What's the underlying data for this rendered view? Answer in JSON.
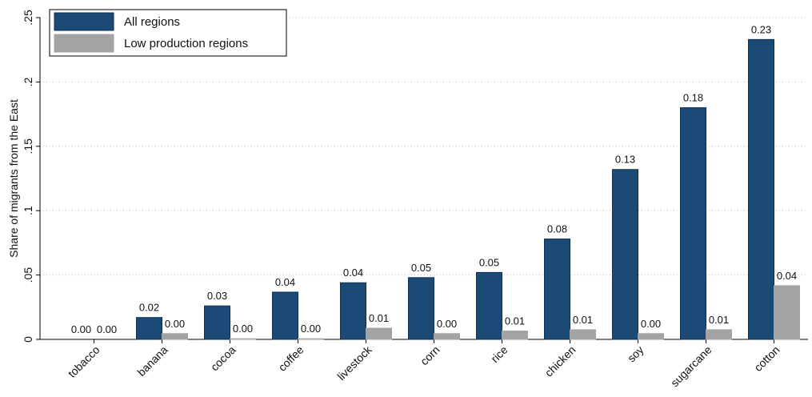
{
  "chart_data": {
    "type": "bar",
    "y_label": "Share of migrants from the East",
    "categories": [
      "tobacco",
      "banana",
      "cocoa",
      "coffee",
      "livestock",
      "corn",
      "rice",
      "chicken",
      "soy",
      "sugarcane",
      "cotton"
    ],
    "series": [
      {
        "name": "All regions",
        "color": "#1b4a76",
        "values": [
          0,
          0.017,
          0.026,
          0.0367,
          0.044,
          0.048,
          0.052,
          0.078,
          0.132,
          0.18,
          0.233
        ],
        "value_labels": [
          "0.00",
          "0.02",
          "0.03",
          "0.04",
          "0.04",
          "0.05",
          "0.05",
          "0.08",
          "0.13",
          "0.18",
          "0.23"
        ]
      },
      {
        "name": "Low production regions",
        "color": "#a3a3a3",
        "values": [
          0,
          0.0045,
          0.0005,
          0.0005,
          0.0087,
          0.0045,
          0.0065,
          0.0075,
          0.0045,
          0.0075,
          0.0417
        ],
        "value_labels": [
          "0.00",
          "0.00",
          "0.00",
          "0.00",
          "0.01",
          "0.00",
          "0.01",
          "0.01",
          "0.00",
          "0.01",
          "0.04"
        ]
      }
    ],
    "ylim": [
      0,
      0.25
    ],
    "yticks": [
      0,
      {
        "value": 0.05,
        "label": ".05"
      },
      {
        "value": 0.1,
        "label": ".1"
      },
      {
        "value": 0.15,
        "label": ".15"
      },
      {
        "value": 0.2,
        "label": ".2"
      },
      {
        "value": 0.25,
        "label": ".25"
      }
    ],
    "grid": true,
    "legend": "top-left"
  }
}
